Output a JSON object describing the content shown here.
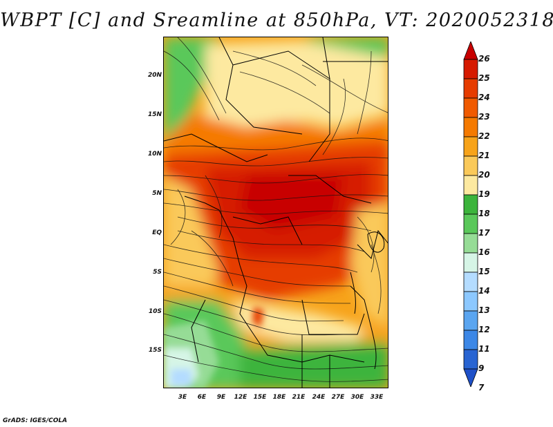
{
  "title": "WBPT [C] and Sreamline at 850hPa, VT: 2020052318",
  "footer": "GrADS: IGES/COLA",
  "lat_labels": [
    "20N",
    "15N",
    "10N",
    "5N",
    "EQ",
    "5S",
    "10S",
    "15S"
  ],
  "lon_labels": [
    "3E",
    "6E",
    "9E",
    "12E",
    "15E",
    "18E",
    "21E",
    "24E",
    "27E",
    "30E",
    "33E"
  ],
  "colorbar": {
    "levels": [
      "26",
      "25",
      "24",
      "23",
      "22",
      "21",
      "20",
      "19",
      "18",
      "17",
      "16",
      "15",
      "14",
      "13",
      "12",
      "11",
      "9",
      "7"
    ],
    "colors": [
      "#c80000",
      "#d61a00",
      "#e63c00",
      "#f05a00",
      "#f57a00",
      "#f7a31a",
      "#fac95a",
      "#fde9a0",
      "#3cb43c",
      "#5ac85a",
      "#96dc96",
      "#d6f5e6",
      "#b4dcff",
      "#8cc8ff",
      "#5aa5f0",
      "#3c87e6",
      "#2864d2",
      "#1e50c8"
    ]
  },
  "map": {
    "variable": "Wet-bulb potential temperature",
    "units": "C",
    "level": "850hPa",
    "valid_time": "2020052318"
  }
}
